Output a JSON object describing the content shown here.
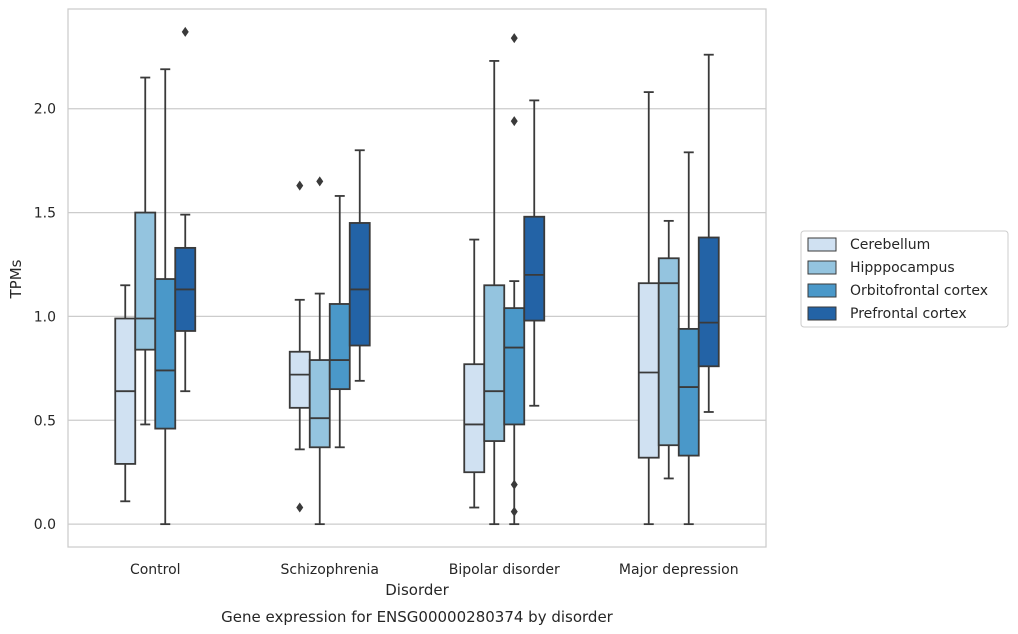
{
  "chart_data": {
    "type": "box",
    "caption": "Gene expression for ENSG00000280374 by disorder",
    "xlabel": "Disorder",
    "ylabel": "TPMs",
    "ylim": [
      -0.11,
      2.48
    ],
    "yticks": [
      "0.0",
      "0.5",
      "1.0",
      "1.5",
      "2.0"
    ],
    "grid": "horizontal",
    "legend_position": "right",
    "categories": [
      "Control",
      "Schizophrenia",
      "Bipolar disorder",
      "Major depression"
    ],
    "series": [
      {
        "name": "Cerebellum",
        "color": "#d0e1f2",
        "boxes": [
          {
            "whislo": 0.11,
            "q1": 0.29,
            "med": 0.64,
            "q3": 0.99,
            "whishi": 1.15,
            "fliers": []
          },
          {
            "whislo": 0.36,
            "q1": 0.56,
            "med": 0.72,
            "q3": 0.83,
            "whishi": 1.08,
            "fliers": [
              0.08,
              1.63
            ]
          },
          {
            "whislo": 0.08,
            "q1": 0.25,
            "med": 0.48,
            "q3": 0.77,
            "whishi": 1.37,
            "fliers": []
          },
          {
            "whislo": 0.0,
            "q1": 0.32,
            "med": 0.73,
            "q3": 1.16,
            "whishi": 2.08,
            "fliers": []
          }
        ]
      },
      {
        "name": "Hipppocampus",
        "color": "#94c4df",
        "boxes": [
          {
            "whislo": 0.48,
            "q1": 0.84,
            "med": 0.99,
            "q3": 1.5,
            "whishi": 2.15,
            "fliers": []
          },
          {
            "whislo": 0.0,
            "q1": 0.37,
            "med": 0.51,
            "q3": 0.79,
            "whishi": 1.11,
            "fliers": [
              1.65
            ]
          },
          {
            "whislo": 0.0,
            "q1": 0.4,
            "med": 0.64,
            "q3": 1.15,
            "whishi": 2.23,
            "fliers": []
          },
          {
            "whislo": 0.22,
            "q1": 0.38,
            "med": 1.16,
            "q3": 1.28,
            "whishi": 1.46,
            "fliers": []
          }
        ]
      },
      {
        "name": "Orbitofrontal cortex",
        "color": "#4a98c9",
        "boxes": [
          {
            "whislo": 0.0,
            "q1": 0.46,
            "med": 0.74,
            "q3": 1.18,
            "whishi": 2.19,
            "fliers": []
          },
          {
            "whislo": 0.37,
            "q1": 0.65,
            "med": 0.79,
            "q3": 1.06,
            "whishi": 1.58,
            "fliers": []
          },
          {
            "whislo": 0.0,
            "q1": 0.48,
            "med": 0.85,
            "q3": 1.04,
            "whishi": 1.17,
            "fliers": [
              0.06,
              0.19,
              1.94,
              2.34
            ]
          },
          {
            "whislo": 0.0,
            "q1": 0.33,
            "med": 0.66,
            "q3": 0.94,
            "whishi": 1.79,
            "fliers": []
          }
        ]
      },
      {
        "name": "Prefrontal cortex",
        "color": "#2363a6",
        "boxes": [
          {
            "whislo": 0.64,
            "q1": 0.93,
            "med": 1.13,
            "q3": 1.33,
            "whishi": 1.49,
            "fliers": [
              2.37
            ]
          },
          {
            "whislo": 0.69,
            "q1": 0.86,
            "med": 1.13,
            "q3": 1.45,
            "whishi": 1.8,
            "fliers": []
          },
          {
            "whislo": 0.57,
            "q1": 0.98,
            "med": 1.2,
            "q3": 1.48,
            "whishi": 2.04,
            "fliers": []
          },
          {
            "whislo": 0.54,
            "q1": 0.76,
            "med": 0.97,
            "q3": 1.38,
            "whishi": 2.26,
            "fliers": []
          }
        ]
      }
    ]
  }
}
